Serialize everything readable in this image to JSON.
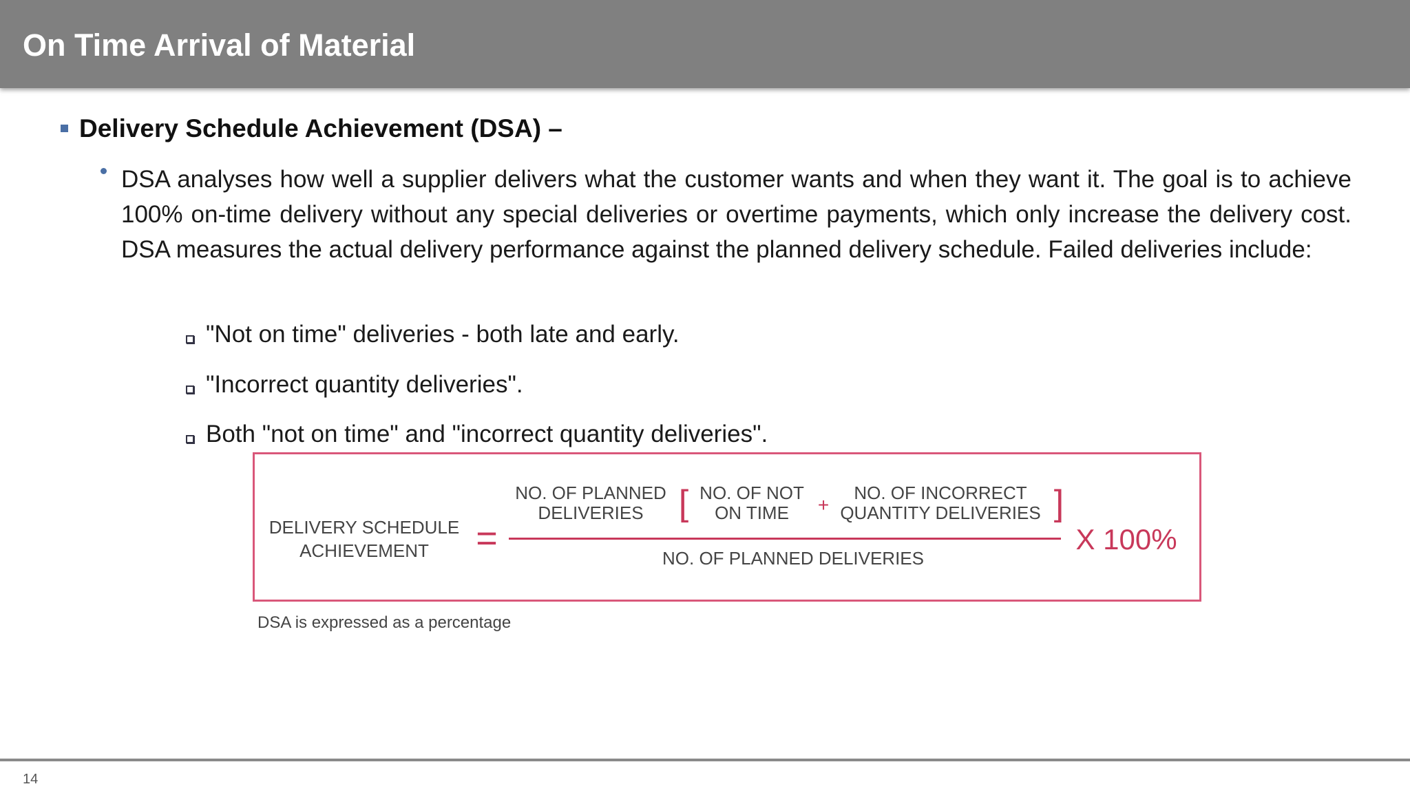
{
  "header": {
    "title": "On Time Arrival of Material"
  },
  "section": {
    "heading": "Delivery Schedule Achievement (DSA) –",
    "paragraph": "DSA analyses how well a supplier delivers what the customer wants and when they want it. The goal is to achieve 100% on-time delivery without any special deliveries or overtime payments, which only increase the delivery cost. DSA measures the actual delivery performance against the planned delivery schedule. Failed deliveries include:",
    "failed_deliveries": [
      "\"Not on time\" deliveries - both late and early.",
      "\"Incorrect quantity deliveries\".",
      "Both \"not on time\" and \"incorrect quantity deliveries\"."
    ]
  },
  "formula": {
    "lhs": [
      "DELIVERY SCHEDULE",
      "ACHIEVEMENT"
    ],
    "equals": "=",
    "numerator": {
      "planned": [
        "NO. OF PLANNED",
        "DELIVERIES"
      ],
      "open_bracket": "[",
      "not_on_time": [
        "NO. OF NOT",
        "ON TIME"
      ],
      "plus": "+",
      "incorrect": [
        "NO. OF INCORRECT",
        "QUANTITY DELIVERIES"
      ],
      "close_bracket": "]"
    },
    "denominator": "NO. OF PLANNED DELIVERIES",
    "multiplier": "X 100%"
  },
  "caption": "DSA is expressed as a percentage",
  "footer": {
    "page_number": "14"
  }
}
